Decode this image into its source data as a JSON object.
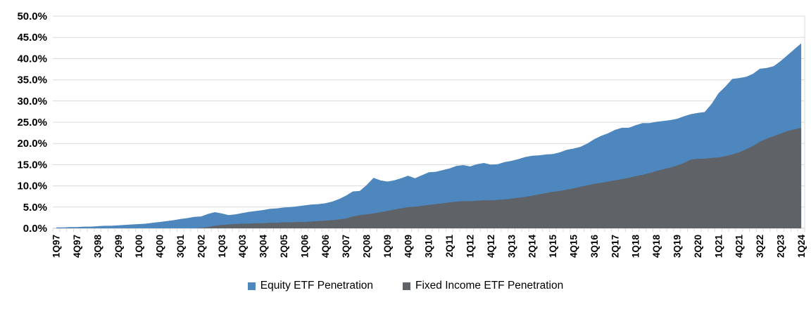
{
  "chart_data": {
    "type": "area",
    "mode": "overlay",
    "title": "",
    "xlabel": "",
    "ylabel": "",
    "x_tick_interval": 3,
    "grid": true,
    "gridline_color": "#D9D9D9",
    "axis_line_color": "#C6C6C6",
    "tick_color": "#D9D9D9",
    "label_color": "#000000",
    "legend_position": "bottom",
    "y_axis": {
      "min": 0,
      "max": 50,
      "step": 5,
      "tick_labels": [
        "0.0%",
        "5.0%",
        "10.0%",
        "15.0%",
        "20.0%",
        "25.0%",
        "30.0%",
        "35.0%",
        "40.0%",
        "45.0%",
        "50.0%"
      ]
    },
    "categories": [
      "1Q97",
      "2Q97",
      "3Q97",
      "4Q97",
      "1Q98",
      "2Q98",
      "3Q98",
      "4Q98",
      "1Q99",
      "2Q99",
      "3Q99",
      "4Q99",
      "1Q00",
      "2Q00",
      "3Q00",
      "4Q00",
      "1Q01",
      "2Q01",
      "3Q01",
      "4Q01",
      "1Q02",
      "2Q02",
      "3Q02",
      "4Q02",
      "1Q03",
      "2Q03",
      "3Q03",
      "4Q03",
      "1Q04",
      "2Q04",
      "3Q04",
      "4Q04",
      "1Q05",
      "2Q05",
      "3Q05",
      "4Q05",
      "1Q06",
      "2Q06",
      "3Q06",
      "4Q06",
      "1Q07",
      "2Q07",
      "3Q07",
      "4Q07",
      "1Q08",
      "2Q08",
      "3Q08",
      "4Q08",
      "1Q09",
      "2Q09",
      "3Q09",
      "4Q09",
      "1Q10",
      "2Q10",
      "3Q10",
      "4Q10",
      "1Q11",
      "2Q11",
      "3Q11",
      "4Q11",
      "1Q12",
      "2Q12",
      "3Q12",
      "4Q12",
      "1Q13",
      "2Q13",
      "3Q13",
      "4Q13",
      "1Q14",
      "2Q14",
      "3Q14",
      "4Q14",
      "1Q15",
      "2Q15",
      "3Q15",
      "4Q15",
      "1Q16",
      "2Q16",
      "3Q16",
      "4Q16",
      "1Q17",
      "2Q17",
      "3Q17",
      "4Q17",
      "1Q18",
      "2Q18",
      "3Q18",
      "4Q18",
      "1Q19",
      "2Q19",
      "3Q19",
      "4Q19",
      "1Q20",
      "2Q20",
      "3Q20",
      "4Q20",
      "1Q21",
      "2Q21",
      "3Q21",
      "4Q21",
      "1Q22",
      "2Q22",
      "3Q22",
      "4Q22",
      "1Q23",
      "2Q23",
      "3Q23",
      "4Q23",
      "1Q24"
    ],
    "series": [
      {
        "name": "Equity ETF Penetration",
        "color": "#4E86BE",
        "values": [
          0.2,
          0.2,
          0.3,
          0.3,
          0.4,
          0.4,
          0.5,
          0.6,
          0.6,
          0.7,
          0.8,
          0.9,
          1.0,
          1.1,
          1.3,
          1.5,
          1.7,
          1.9,
          2.2,
          2.4,
          2.7,
          2.8,
          3.4,
          3.8,
          3.5,
          3.1,
          3.3,
          3.6,
          3.9,
          4.1,
          4.3,
          4.6,
          4.7,
          4.9,
          5.0,
          5.2,
          5.4,
          5.6,
          5.7,
          5.9,
          6.3,
          6.9,
          7.7,
          8.7,
          8.8,
          10.2,
          11.9,
          11.3,
          11.0,
          11.3,
          11.8,
          12.4,
          11.8,
          12.5,
          13.2,
          13.3,
          13.7,
          14.1,
          14.7,
          14.9,
          14.6,
          15.1,
          15.4,
          15.0,
          15.1,
          15.6,
          15.9,
          16.3,
          16.8,
          17.1,
          17.2,
          17.4,
          17.5,
          17.9,
          18.5,
          18.8,
          19.2,
          20.0,
          21.0,
          21.8,
          22.4,
          23.2,
          23.7,
          23.7,
          24.3,
          24.8,
          24.8,
          25.1,
          25.3,
          25.5,
          25.8,
          26.4,
          26.9,
          27.2,
          27.4,
          29.3,
          31.8,
          33.4,
          35.2,
          35.4,
          35.7,
          36.4,
          37.6,
          37.8,
          38.2,
          39.4,
          40.8,
          42.2,
          43.6
        ]
      },
      {
        "name": "Fixed Income ETF Penetration",
        "color": "#5F6267",
        "values": [
          0.0,
          0.0,
          0.0,
          0.0,
          0.0,
          0.0,
          0.0,
          0.0,
          0.0,
          0.0,
          0.0,
          0.0,
          0.0,
          0.0,
          0.0,
          0.0,
          0.0,
          0.0,
          0.0,
          0.0,
          0.0,
          0.1,
          0.3,
          0.6,
          0.8,
          0.9,
          1.0,
          1.1,
          1.1,
          1.2,
          1.2,
          1.3,
          1.3,
          1.4,
          1.4,
          1.5,
          1.5,
          1.6,
          1.7,
          1.8,
          1.9,
          2.1,
          2.3,
          2.8,
          3.1,
          3.3,
          3.5,
          3.8,
          4.1,
          4.4,
          4.7,
          5.0,
          5.1,
          5.3,
          5.5,
          5.7,
          5.9,
          6.1,
          6.3,
          6.4,
          6.4,
          6.5,
          6.6,
          6.6,
          6.7,
          6.8,
          7.0,
          7.2,
          7.4,
          7.7,
          8.0,
          8.3,
          8.6,
          8.8,
          9.1,
          9.4,
          9.8,
          10.1,
          10.5,
          10.7,
          11.0,
          11.3,
          11.6,
          11.9,
          12.3,
          12.6,
          13.0,
          13.5,
          13.9,
          14.3,
          14.8,
          15.4,
          16.2,
          16.4,
          16.4,
          16.6,
          16.7,
          17.0,
          17.4,
          17.9,
          18.6,
          19.4,
          20.4,
          21.1,
          21.7,
          22.3,
          22.9,
          23.3,
          23.7
        ]
      }
    ]
  }
}
